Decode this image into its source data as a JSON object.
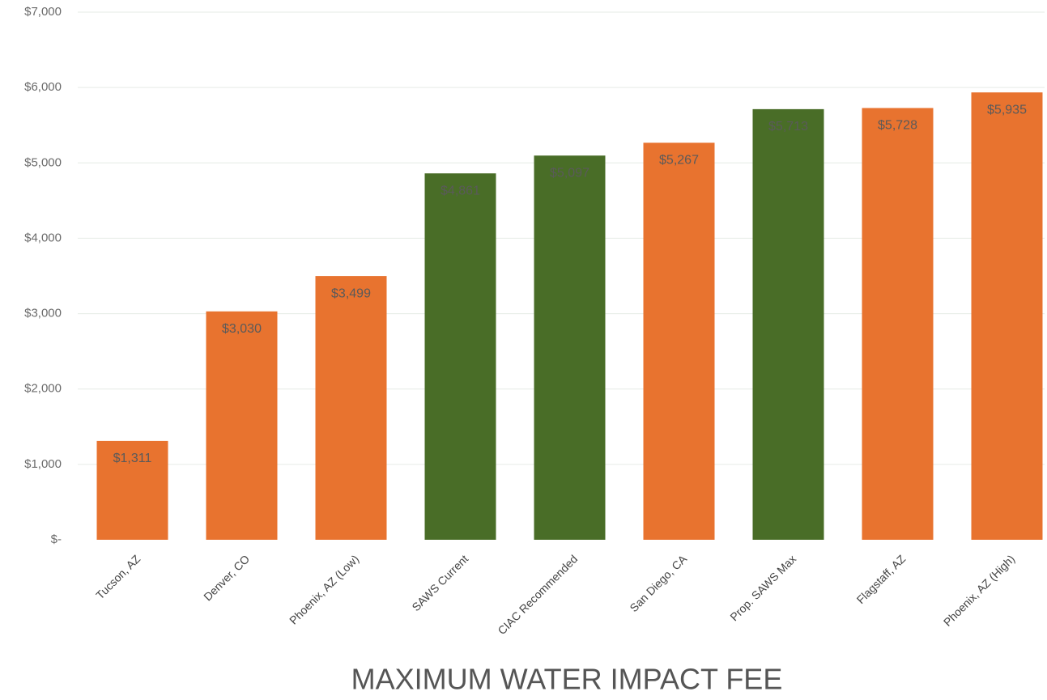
{
  "chart_data": {
    "type": "bar",
    "title": "MAXIMUM WATER IMPACT FEE",
    "categories": [
      "Tucson, AZ",
      "Denver, CO",
      "Phoenix, AZ (Low)",
      "SAWS Current",
      "CIAC Recommended",
      "San Diego, CA",
      "Prop. SAWS Max",
      "Flagstaff, AZ",
      "Phoenix, AZ (High)"
    ],
    "values": [
      1311,
      3030,
      3499,
      4861,
      5097,
      5267,
      5713,
      5728,
      5935
    ],
    "value_labels": [
      "$1,311",
      "$3,030",
      "$3,499",
      "$4,861",
      "$5,097",
      "$5,267",
      "$5,713",
      "$5,728",
      "$5,935"
    ],
    "colors": [
      "#e8732f",
      "#e8732f",
      "#e8732f",
      "#496d27",
      "#496d27",
      "#e8732f",
      "#496d27",
      "#e8732f",
      "#e8732f"
    ],
    "ylim": [
      0,
      7000
    ],
    "yticks": [
      {
        "value": 0,
        "label": "$-"
      },
      {
        "value": 1000,
        "label": "$1,000"
      },
      {
        "value": 2000,
        "label": "$2,000"
      },
      {
        "value": 3000,
        "label": "$3,000"
      },
      {
        "value": 4000,
        "label": "$4,000"
      },
      {
        "value": 5000,
        "label": "$5,000"
      },
      {
        "value": 6000,
        "label": "$6,000"
      },
      {
        "value": 7000,
        "label": "$7,000"
      }
    ],
    "grid": true
  }
}
